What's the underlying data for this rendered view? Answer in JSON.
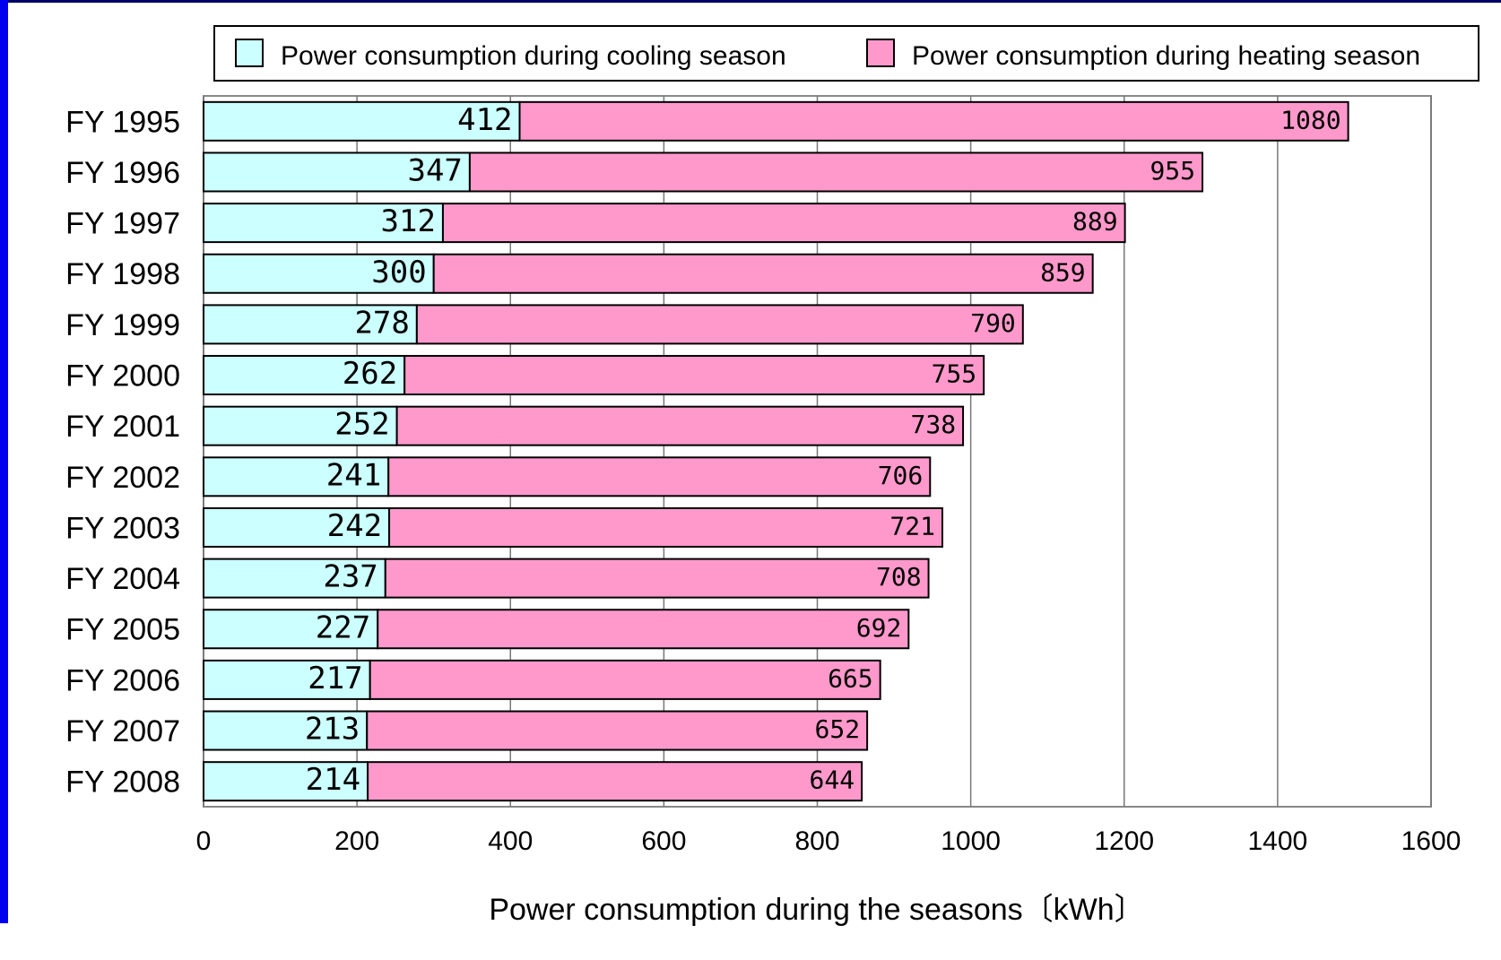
{
  "chart_data": {
    "type": "stacked-bar-horizontal",
    "categories": [
      "FY 1995",
      "FY 1996",
      "FY 1997",
      "FY 1998",
      "FY 1999",
      "FY 2000",
      "FY 2001",
      "FY 2002",
      "FY 2003",
      "FY 2004",
      "FY 2005",
      "FY 2006",
      "FY 2007",
      "FY 2008"
    ],
    "series": [
      {
        "name": "Power consumption during cooling season",
        "color": "#ccffff",
        "values": [
          412,
          347,
          312,
          300,
          278,
          262,
          252,
          241,
          242,
          237,
          227,
          217,
          213,
          214
        ]
      },
      {
        "name": "Power consumption during heating season",
        "color": "#ff99cc",
        "values": [
          1080,
          955,
          889,
          859,
          790,
          755,
          738,
          706,
          721,
          708,
          692,
          665,
          652,
          644
        ]
      }
    ],
    "xlabel": "Power consumption during the seasons〔kWh〕",
    "xlim": [
      0,
      1600
    ],
    "xticks": [
      0,
      200,
      400,
      600,
      800,
      1000,
      1200,
      1400,
      1600
    ],
    "grid": true,
    "legend": "top"
  }
}
